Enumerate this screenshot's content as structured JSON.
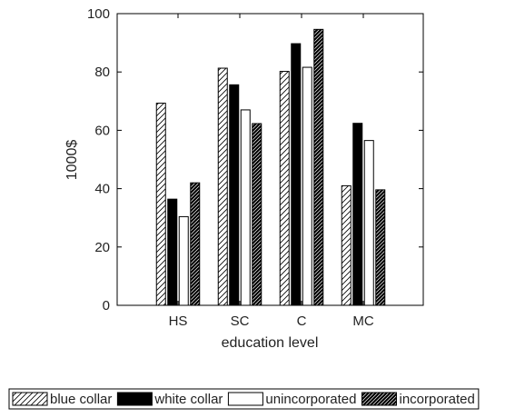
{
  "chart_data": {
    "type": "bar",
    "xlabel": "education level",
    "ylabel": "1000$",
    "ylim": [
      0,
      100
    ],
    "yticks": [
      0,
      20,
      40,
      60,
      80,
      100
    ],
    "categories": [
      "HS",
      "SC",
      "C",
      "MC"
    ],
    "grid": false,
    "legend_position": "bottom",
    "series": [
      {
        "name": "blue collar",
        "values": [
          69.3,
          81.3,
          80.2,
          41.0
        ],
        "fill": "hatch-light",
        "color": "#000000"
      },
      {
        "name": "white collar",
        "values": [
          36.4,
          75.6,
          89.7,
          62.4
        ],
        "fill": "solid",
        "color": "#000000"
      },
      {
        "name": "unincorporated",
        "values": [
          30.4,
          67.0,
          81.6,
          56.5
        ],
        "fill": "none",
        "color": "#ffffff"
      },
      {
        "name": "incorporated",
        "values": [
          42.0,
          62.3,
          94.6,
          39.6
        ],
        "fill": "hatch-dense",
        "color": "#000000"
      }
    ]
  }
}
